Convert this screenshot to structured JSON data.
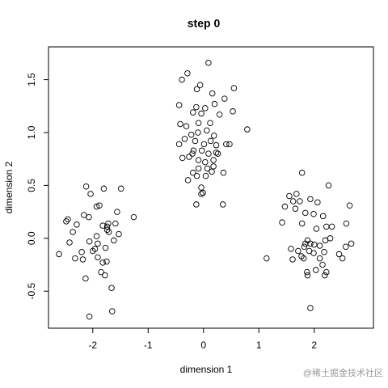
{
  "chart_data": {
    "type": "scatter",
    "title": "step 0",
    "x_label": "dimension 1",
    "y_label": "dimension 2",
    "watermark": "@稀土掘金技术社区",
    "xlim": [
      -2.8,
      3.07
    ],
    "ylim": [
      -0.85,
      1.81
    ],
    "xticks": [
      -2,
      -1,
      0,
      1,
      2
    ],
    "yticks": [
      -0.5,
      {
        "value": 0,
        "label": "0.0"
      },
      0.5,
      {
        "value": 1,
        "label": "1.0"
      },
      1.5
    ],
    "color": "#000000",
    "x": [
      -2.61,
      -2.48,
      -2.45,
      -2.42,
      -2.32,
      -2.29,
      -2.18,
      -2.12,
      -2.16,
      -2.07,
      -2.04,
      -2.06,
      -1.96,
      -1.91,
      -1.93,
      -1.88,
      -1.82,
      -1.8,
      -1.77,
      -1.74,
      -1.72,
      -1.74,
      -1.71,
      -1.82,
      -1.91,
      -2.0,
      -1.85,
      -1.78,
      -2.13,
      -2.06,
      -1.66,
      -1.65,
      -1.62,
      -1.53,
      -1.56,
      -1.49,
      -1.59,
      -1.26,
      -1.93,
      -1.75,
      -2.2,
      -2.36,
      0.09,
      -0.29,
      -0.06,
      -0.39,
      0.16,
      -0.12,
      0.55,
      0.38,
      -0.44,
      -0.13,
      0.03,
      0.2,
      0.53,
      -0.04,
      -0.19,
      -0.09,
      -0.42,
      -0.31,
      0.12,
      0.29,
      0.79,
      -0.44,
      -0.34,
      -0.22,
      -0.1,
      0.06,
      0.19,
      -0.15,
      0.01,
      0.13,
      0.23,
      0.41,
      0.47,
      -0.18,
      -0.2,
      -0.03,
      0.09,
      -0.26,
      -0.09,
      0.03,
      0.18,
      0.26,
      0.07,
      0.18,
      -0.38,
      -0.19,
      -0.09,
      -0.28,
      -0.12,
      0.04,
      0.15,
      0.36,
      -0.04,
      -0.01,
      -0.13,
      -0.04,
      0.35,
      0.23,
      1.78,
      1.68,
      2.26,
      1.55,
      1.62,
      1.74,
      1.93,
      2.06,
      1.47,
      1.66,
      1.84,
      1.99,
      2.16,
      2.22,
      2.32,
      2.64,
      2.58,
      1.42,
      1.78,
      2.04,
      2.2,
      2.29,
      1.88,
      1.58,
      1.84,
      1.93,
      1.82,
      2.0,
      1.91,
      2.1,
      1.99,
      2.18,
      1.61,
      1.81,
      2.1,
      2.57,
      2.67,
      2.45,
      2.51,
      2.15,
      1.87,
      2.03,
      2.22,
      1.88,
      2.19,
      1.93,
      1.14,
      1.77,
      1.71
    ],
    "values": [
      -0.15,
      0.16,
      0.18,
      -0.04,
      -0.19,
      0.13,
      -0.2,
      0.49,
      0.22,
      0.2,
      0.42,
      -0.03,
      -0.1,
      -0.18,
      0.02,
      0.31,
      0.12,
      0.47,
      -0.09,
      0.11,
      0.14,
      0.08,
      0.06,
      -0.23,
      -0.05,
      -0.12,
      -0.32,
      -0.35,
      -0.38,
      -0.74,
      -0.47,
      -0.69,
      -0.02,
      0.04,
      0.25,
      0.47,
      0.14,
      0.2,
      0.3,
      -0.22,
      -0.13,
      0.06,
      1.66,
      1.56,
      1.45,
      1.5,
      1.37,
      1.41,
      1.42,
      1.32,
      1.26,
      1.24,
      1.23,
      1.27,
      1.2,
      1.18,
      1.19,
      1.09,
      1.08,
      1.06,
      1.09,
      1.17,
      1.03,
      0.89,
      0.94,
      0.98,
      1.0,
      1.02,
      0.97,
      0.92,
      0.89,
      0.92,
      0.88,
      0.89,
      0.89,
      0.83,
      0.8,
      0.83,
      0.8,
      0.77,
      0.74,
      0.72,
      0.74,
      0.8,
      0.66,
      0.68,
      0.76,
      0.62,
      0.66,
      0.55,
      0.59,
      0.59,
      0.63,
      0.62,
      0.48,
      0.43,
      0.32,
      0.42,
      0.32,
      0.81,
      0.62,
      0.42,
      0.5,
      0.4,
      0.35,
      0.35,
      0.37,
      0.34,
      0.3,
      0.28,
      0.24,
      0.23,
      0.21,
      0.11,
      0.11,
      0.31,
      0.14,
      0.15,
      0.14,
      0.09,
      -0.02,
      0.0,
      -0.02,
      -0.1,
      -0.05,
      -0.05,
      -0.08,
      -0.06,
      -0.12,
      -0.07,
      -0.14,
      -0.13,
      -0.2,
      -0.19,
      -0.19,
      -0.08,
      -0.05,
      -0.15,
      -0.19,
      -0.25,
      -0.32,
      -0.3,
      -0.32,
      -0.35,
      -0.35,
      -0.66,
      -0.19,
      -0.17,
      -0.12
    ]
  }
}
